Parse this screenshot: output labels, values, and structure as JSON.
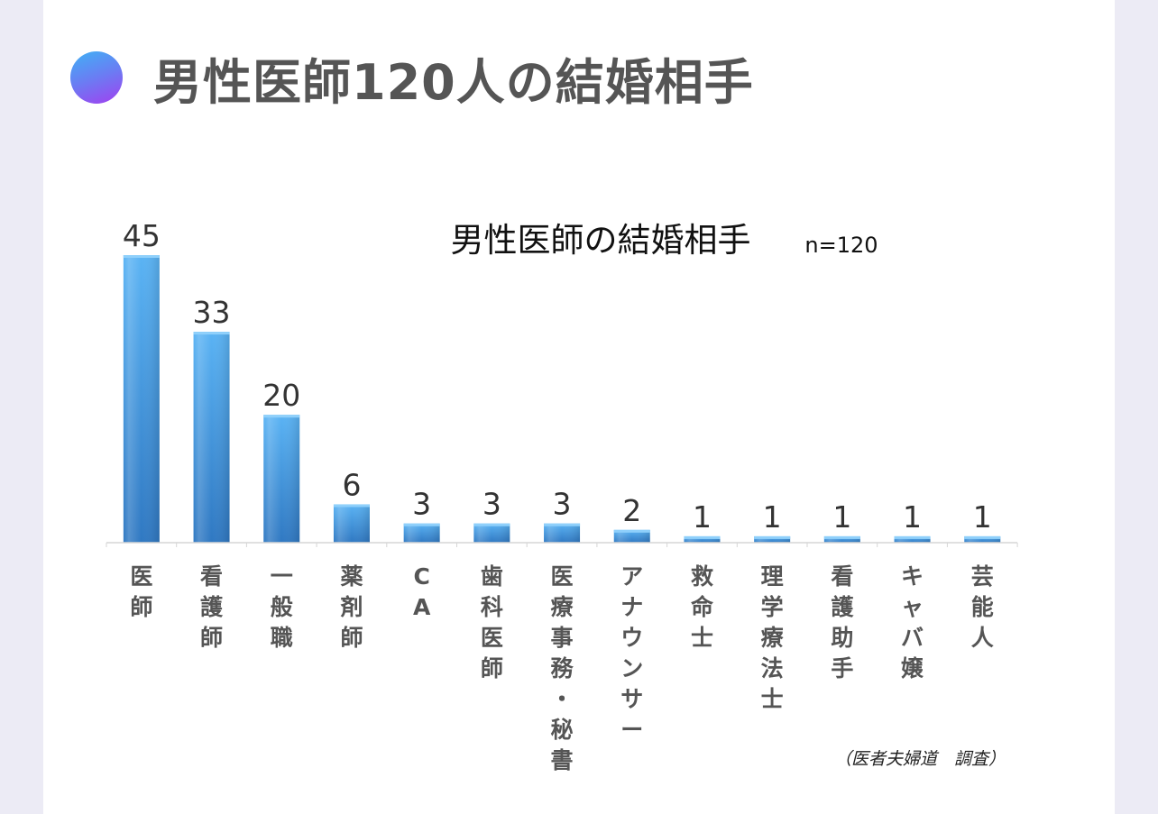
{
  "page": {
    "title": "男性医師120人の結婚相手"
  },
  "colors": {
    "bar_top": "#57b0f3",
    "bar_bottom": "#2f79c4",
    "accent_dot": "#7a6cf3"
  },
  "chart_data": {
    "type": "bar",
    "title": "男性医師の結婚相手",
    "subtitle": "n=120",
    "categories": [
      "医師",
      "看護師",
      "一般職",
      "薬剤師",
      "CA",
      "歯科医師",
      "医療事務・秘書",
      "アナウンサー",
      "救命士",
      "理学療法士",
      "看護助手",
      "キャバ嬢",
      "芸能人"
    ],
    "values": [
      45,
      33,
      20,
      6,
      3,
      3,
      3,
      2,
      1,
      1,
      1,
      1,
      1
    ],
    "ylim": [
      0,
      45
    ],
    "grid": false,
    "source": "（医者夫婦道　調査）"
  }
}
